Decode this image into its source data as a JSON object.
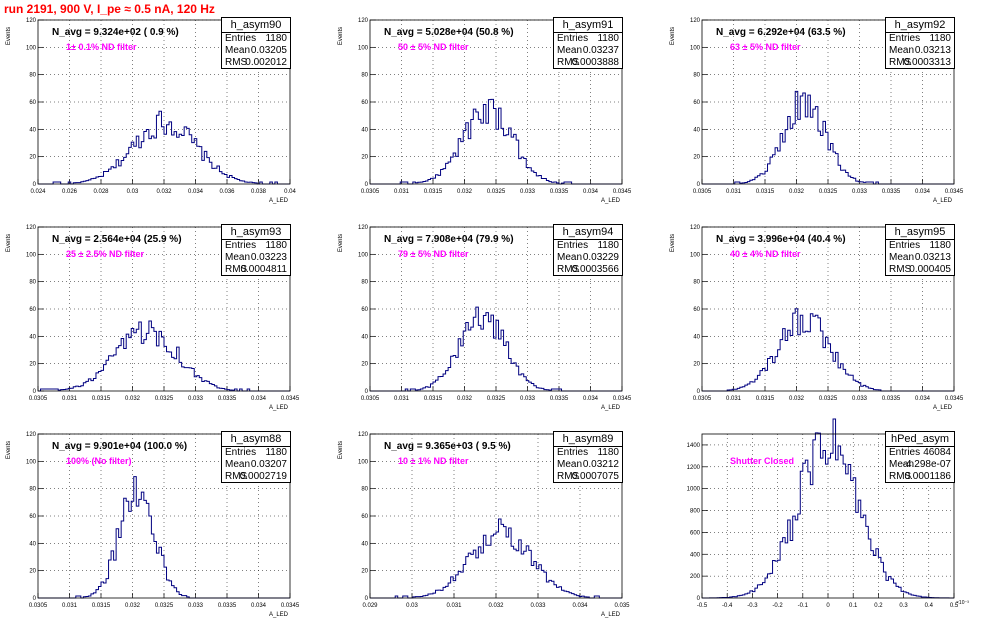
{
  "page_title": "run 2191,   900 V, I_pe ≈ 0.5 nA, 120 Hz",
  "stat_labels": {
    "entries": "Entries",
    "mean": "Mean",
    "rms": "RMS"
  },
  "colors": {
    "histogram": "#000080",
    "annotation": "#ff00ff",
    "title": "#ff0000",
    "grid": "#000000"
  },
  "chart_data": [
    {
      "type": "bar",
      "name": "h_asym90",
      "title": "N_avg = 9.324e+02 ( 0.9 %)",
      "annotation": "1± 0.1% ND filter",
      "xlabel": "A_LED",
      "ylabel": "Events",
      "xlim": [
        0.024,
        0.04
      ],
      "ylim": [
        0,
        120
      ],
      "xticks": [
        "0.024",
        "0.026",
        "0.028",
        "0.03",
        "0.032",
        "0.034",
        "0.036",
        "0.038",
        "0.04"
      ],
      "yticks": [
        "0",
        "20",
        "40",
        "60",
        "80",
        "100",
        "120"
      ],
      "grid": true,
      "entries": "1180",
      "mean": "0.03205",
      "rms": "0.002012",
      "mean_value": 0.03205,
      "rms_value": 0.002012,
      "peak": 45
    },
    {
      "type": "bar",
      "name": "h_asym91",
      "title": "N_avg = 5.028e+04 (50.8 %)",
      "annotation": "50 ± 5% ND filter",
      "xlabel": "A_LED",
      "ylabel": "Events",
      "xlim": [
        0.0305,
        0.0345
      ],
      "ylim": [
        0,
        120
      ],
      "xticks": [
        "0.0305",
        "0.031",
        "0.0315",
        "0.032",
        "0.0325",
        "0.033",
        "0.0335",
        "0.034",
        "0.0345"
      ],
      "yticks": [
        "0",
        "20",
        "40",
        "60",
        "80",
        "100",
        "120"
      ],
      "grid": true,
      "entries": "1180",
      "mean": "0.03237",
      "rms": "0.0003888",
      "mean_value": 0.03237,
      "rms_value": 0.0003888,
      "peak": 55
    },
    {
      "type": "bar",
      "name": "h_asym92",
      "title": "N_avg = 6.292e+04 (63.5 %)",
      "annotation": "63 ± 5% ND filter",
      "xlabel": "A_LED",
      "ylabel": "Events",
      "xlim": [
        0.0305,
        0.0345
      ],
      "ylim": [
        0,
        120
      ],
      "xticks": [
        "0.0305",
        "0.031",
        "0.0315",
        "0.032",
        "0.0325",
        "0.033",
        "0.0335",
        "0.034",
        "0.0345"
      ],
      "yticks": [
        "0",
        "20",
        "40",
        "60",
        "80",
        "100",
        "120"
      ],
      "grid": true,
      "entries": "1180",
      "mean": "0.03213",
      "rms": "0.0003313",
      "mean_value": 0.03213,
      "rms_value": 0.0003313,
      "peak": 60
    },
    {
      "type": "bar",
      "name": "h_asym93",
      "title": "N_avg = 2.564e+04 (25.9 %)",
      "annotation": "25 ± 2.5% ND filter",
      "xlabel": "A_LED",
      "ylabel": "Events",
      "xlim": [
        0.0305,
        0.0345
      ],
      "ylim": [
        0,
        120
      ],
      "xticks": [
        "0.0305",
        "0.031",
        "0.0315",
        "0.032",
        "0.0325",
        "0.033",
        "0.0335",
        "0.034",
        "0.0345"
      ],
      "yticks": [
        "0",
        "20",
        "40",
        "60",
        "80",
        "100",
        "120"
      ],
      "grid": true,
      "entries": "1180",
      "mean": "0.03223",
      "rms": "0.0004811",
      "mean_value": 0.03223,
      "rms_value": 0.0004811,
      "peak": 45
    },
    {
      "type": "bar",
      "name": "h_asym94",
      "title": "N_avg = 7.908e+04 (79.9 %)",
      "annotation": "79 ± 5% ND filter",
      "xlabel": "A_LED",
      "ylabel": "Events",
      "xlim": [
        0.0305,
        0.0345
      ],
      "ylim": [
        0,
        120
      ],
      "xticks": [
        "0.0305",
        "0.031",
        "0.0315",
        "0.032",
        "0.0325",
        "0.033",
        "0.0335",
        "0.034",
        "0.0345"
      ],
      "yticks": [
        "0",
        "20",
        "40",
        "60",
        "80",
        "100",
        "120"
      ],
      "grid": true,
      "entries": "1180",
      "mean": "0.03229",
      "rms": "0.0003566",
      "mean_value": 0.03229,
      "rms_value": 0.0003566,
      "peak": 57
    },
    {
      "type": "bar",
      "name": "h_asym95",
      "title": "N_avg = 3.996e+04 (40.4 %)",
      "annotation": "40 ± 4% ND filter",
      "xlabel": "A_LED",
      "ylabel": "Events",
      "xlim": [
        0.0305,
        0.0345
      ],
      "ylim": [
        0,
        120
      ],
      "xticks": [
        "0.0305",
        "0.031",
        "0.0315",
        "0.032",
        "0.0325",
        "0.033",
        "0.0335",
        "0.034",
        "0.0345"
      ],
      "yticks": [
        "0",
        "20",
        "40",
        "60",
        "80",
        "100",
        "120"
      ],
      "grid": true,
      "entries": "1180",
      "mean": "0.03213",
      "rms": "0.000405",
      "mean_value": 0.03213,
      "rms_value": 0.000405,
      "peak": 53
    },
    {
      "type": "bar",
      "name": "h_asym88",
      "title": "N_avg = 9.901e+04 (100.0 %)",
      "annotation": "100% (No filter)",
      "xlabel": "A_LED",
      "ylabel": "Events",
      "xlim": [
        0.0305,
        0.0345
      ],
      "ylim": [
        0,
        120
      ],
      "xticks": [
        "0.0305",
        "0.031",
        "0.0315",
        "0.032",
        "0.0325",
        "0.033",
        "0.0335",
        "0.034",
        "0.0345"
      ],
      "yticks": [
        "0",
        "20",
        "40",
        "60",
        "80",
        "100",
        "120"
      ],
      "grid": true,
      "entries": "1180",
      "mean": "0.03207",
      "rms": "0.0002719",
      "mean_value": 0.03207,
      "rms_value": 0.0002719,
      "peak": 80
    },
    {
      "type": "bar",
      "name": "h_asym89",
      "title": "N_avg = 9.365e+03 ( 9.5 %)",
      "annotation": "10 ± 1% ND filter",
      "xlabel": "A_LED",
      "ylabel": "Events",
      "xlim": [
        0.029,
        0.035
      ],
      "ylim": [
        0,
        120
      ],
      "xticks": [
        "0.029",
        "0.03",
        "0.031",
        "0.032",
        "0.033",
        "0.034",
        "0.035"
      ],
      "yticks": [
        "0",
        "20",
        "40",
        "60",
        "80",
        "100",
        "120"
      ],
      "grid": true,
      "entries": "1180",
      "mean": "0.03212",
      "rms": "0.0007075",
      "mean_value": 0.03212,
      "rms_value": 0.0007075,
      "peak": 50
    },
    {
      "type": "bar",
      "name": "hPed_asym",
      "title": "",
      "annotation": "Shutter Closed",
      "xlabel": "",
      "ylabel": "",
      "xlim": [
        -0.5,
        0.5
      ],
      "ylim": [
        0,
        1500
      ],
      "xexponent": "×10⁻³",
      "xticks": [
        "-0.5",
        "-0.4",
        "-0.3",
        "-0.2",
        "-0.1",
        "0",
        "0.1",
        "0.2",
        "0.3",
        "0.4",
        "0.5"
      ],
      "yticks": [
        "0",
        "200",
        "400",
        "600",
        "800",
        "1000",
        "1200",
        "1400"
      ],
      "grid": true,
      "entries": "46084",
      "mean": "-4.298e-07",
      "rms": "0.0001186",
      "mean_value": 0.0,
      "rms_value": 0.12,
      "peak": 1400
    }
  ]
}
